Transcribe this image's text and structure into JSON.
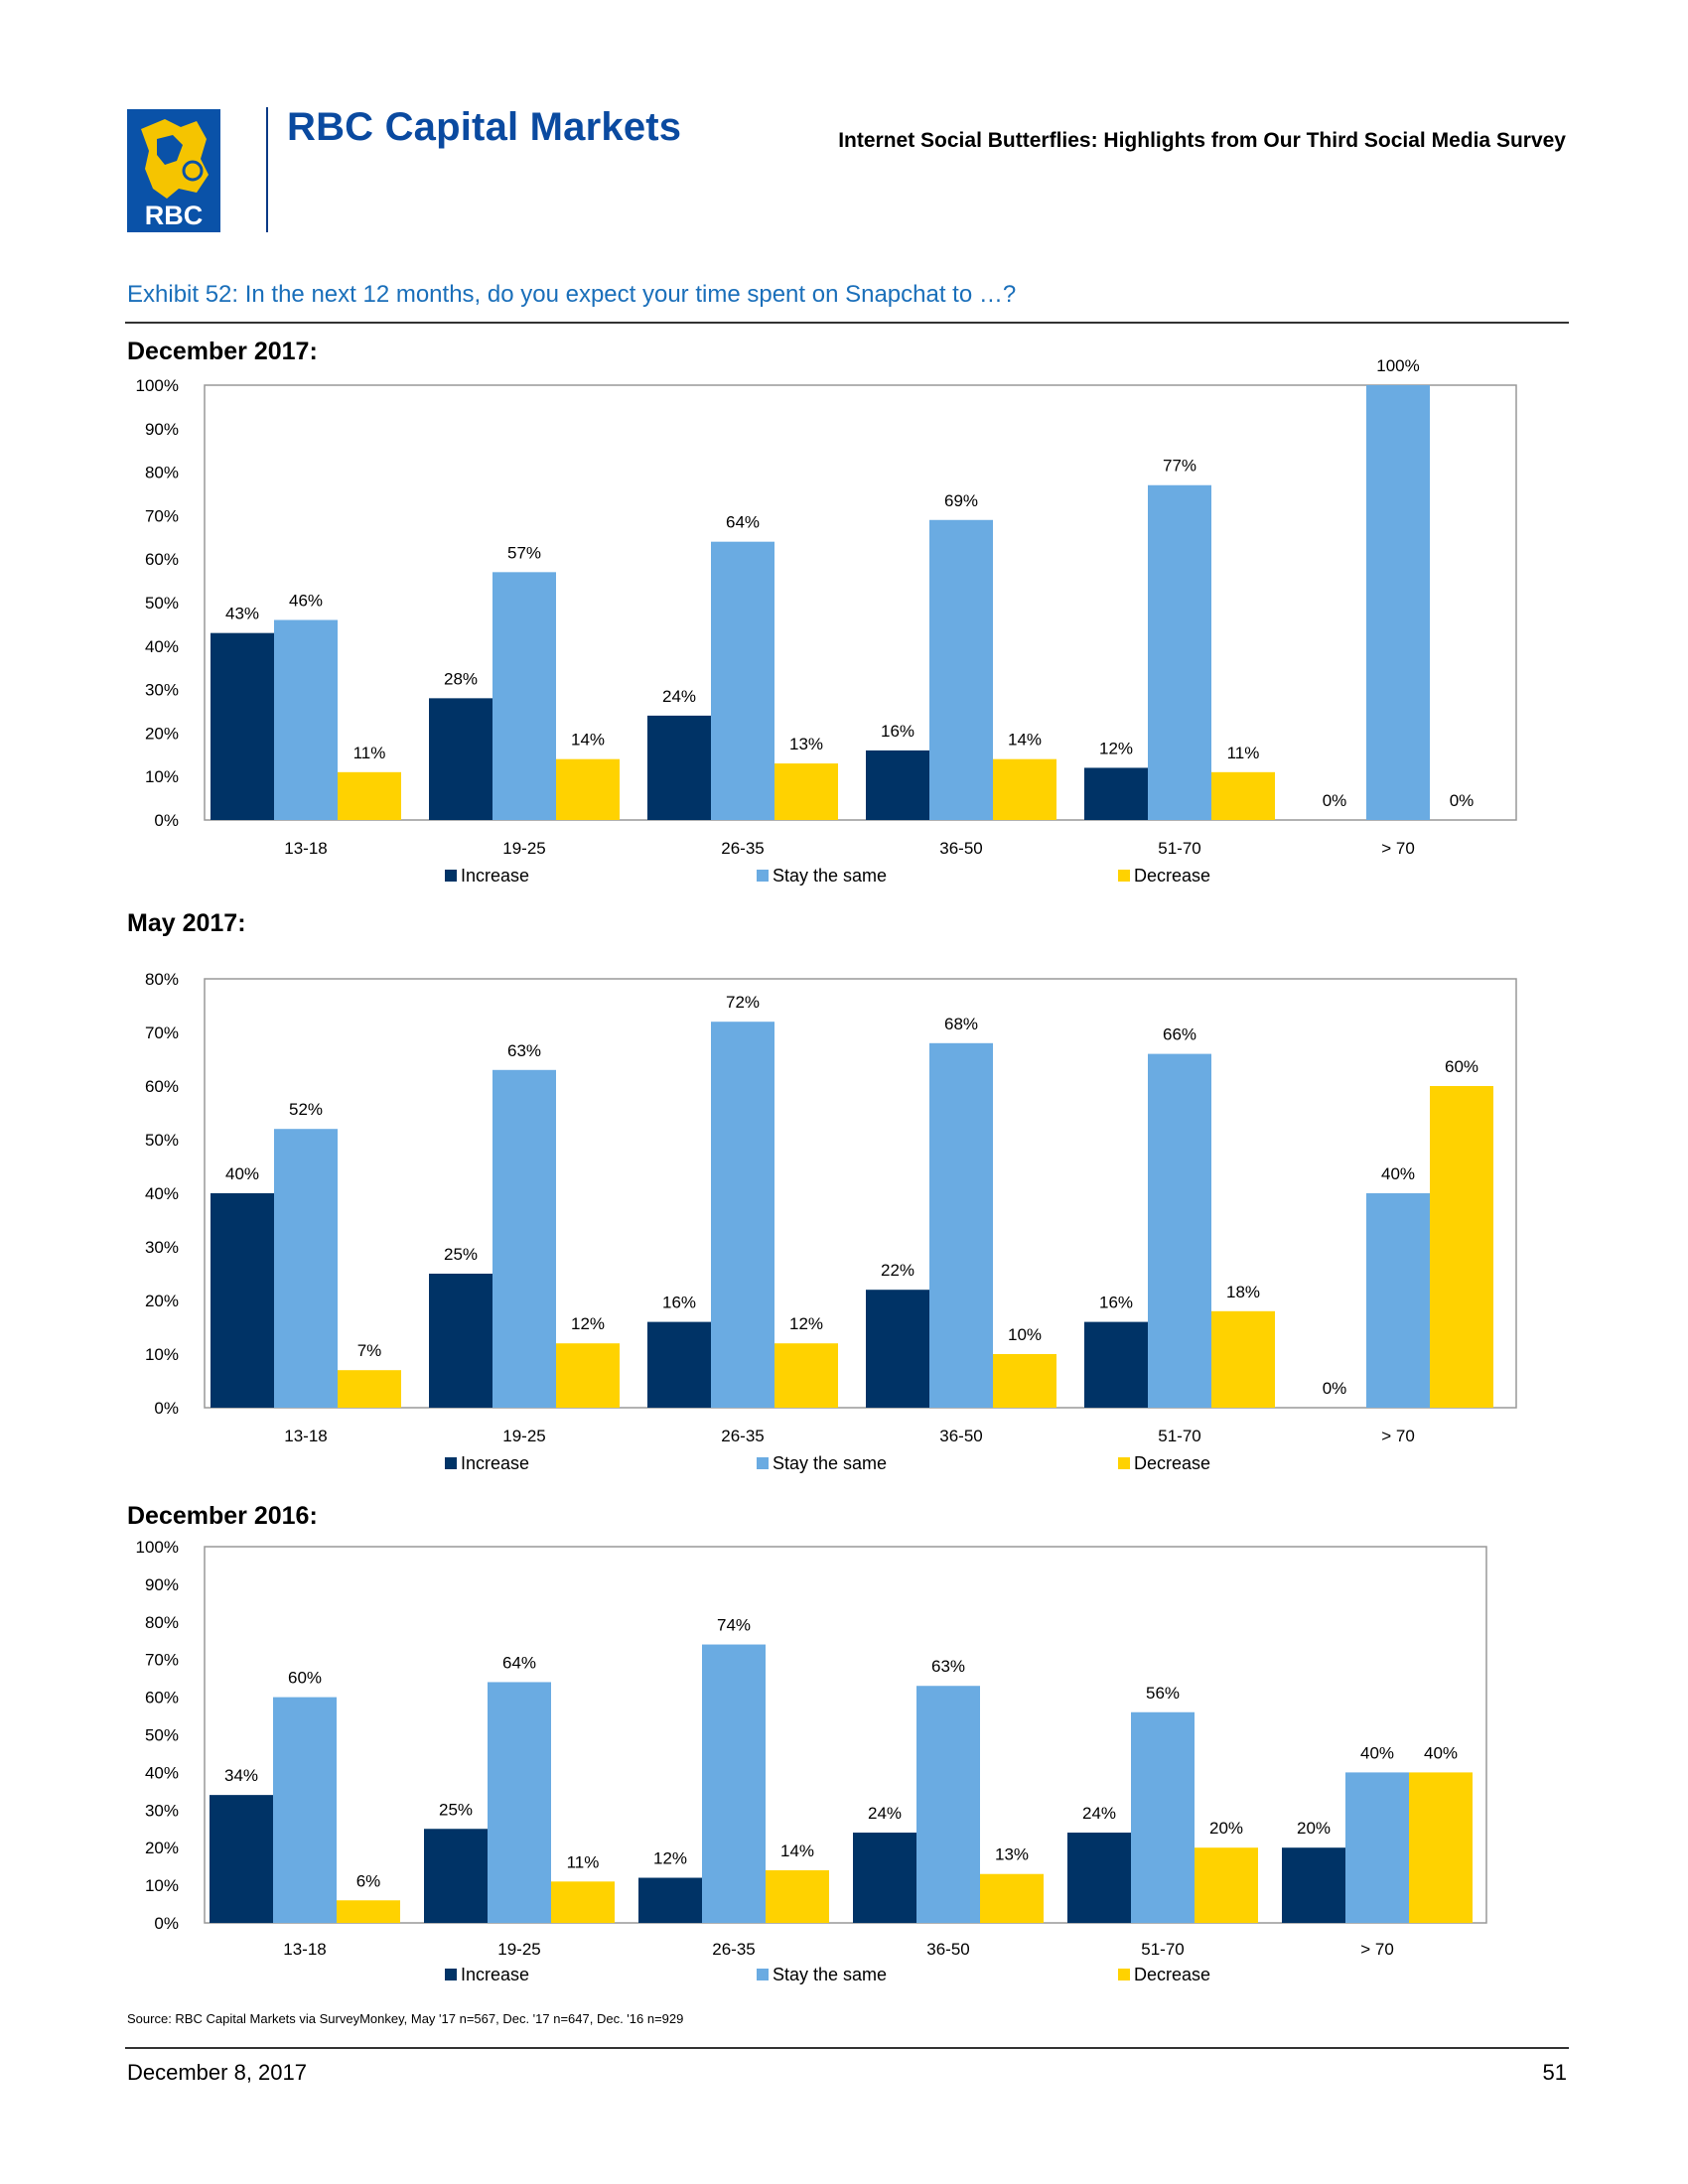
{
  "header": {
    "logo_text": "RBC",
    "brand": "RBC Capital Markets",
    "report_title": "Internet Social Butterflies: Highlights from Our Third Social Media Survey"
  },
  "exhibit_title": "Exhibit 52: In the next 12 months, do you expect your time spent on Snapchat to …?",
  "colors": {
    "increase": "#003366",
    "stay": "#6aabe2",
    "decrease": "#ffd200",
    "brand": "#0a4aa0",
    "exhibit": "#1a6fba"
  },
  "chart_data": [
    {
      "type": "bar",
      "title": "December 2017:",
      "categories": [
        "13-18",
        "19-25",
        "26-35",
        "36-50",
        "51-70",
        "> 70"
      ],
      "ylim": [
        0,
        100
      ],
      "yticks": [
        "0%",
        "10%",
        "20%",
        "30%",
        "40%",
        "50%",
        "60%",
        "70%",
        "80%",
        "90%",
        "100%"
      ],
      "legend_position": "bottom",
      "series": [
        {
          "name": "Increase",
          "values": [
            43,
            28,
            24,
            16,
            12,
            0
          ]
        },
        {
          "name": "Stay the same",
          "values": [
            46,
            57,
            64,
            69,
            77,
            100
          ]
        },
        {
          "name": "Decrease",
          "values": [
            11,
            14,
            13,
            14,
            11,
            0
          ]
        }
      ]
    },
    {
      "type": "bar",
      "title": "May 2017:",
      "categories": [
        "13-18",
        "19-25",
        "26-35",
        "36-50",
        "51-70",
        "> 70"
      ],
      "ylim": [
        0,
        80
      ],
      "yticks": [
        "0%",
        "10%",
        "20%",
        "30%",
        "40%",
        "50%",
        "60%",
        "70%",
        "80%"
      ],
      "legend_position": "bottom",
      "series": [
        {
          "name": "Increase",
          "values": [
            40,
            25,
            16,
            22,
            16,
            0
          ]
        },
        {
          "name": "Stay the same",
          "values": [
            52,
            63,
            72,
            68,
            66,
            40
          ]
        },
        {
          "name": "Decrease",
          "values": [
            7,
            12,
            12,
            10,
            18,
            60
          ]
        }
      ]
    },
    {
      "type": "bar",
      "title": "December 2016:",
      "categories": [
        "13-18",
        "19-25",
        "26-35",
        "36-50",
        "51-70",
        "> 70"
      ],
      "ylim": [
        0,
        100
      ],
      "yticks": [
        "0%",
        "10%",
        "20%",
        "30%",
        "40%",
        "50%",
        "60%",
        "70%",
        "80%",
        "90%",
        "100%"
      ],
      "legend_position": "bottom",
      "series": [
        {
          "name": "Increase",
          "values": [
            34,
            25,
            12,
            24,
            24,
            20
          ]
        },
        {
          "name": "Stay the same",
          "values": [
            60,
            64,
            74,
            63,
            56,
            40
          ]
        },
        {
          "name": "Decrease",
          "values": [
            6,
            11,
            14,
            13,
            20,
            40
          ]
        }
      ]
    }
  ],
  "source": "Source: RBC Capital Markets via SurveyMonkey, May '17 n=567, Dec. '17 n=647, Dec. '16 n=929",
  "footer": {
    "date": "December 8, 2017",
    "page": "51"
  }
}
